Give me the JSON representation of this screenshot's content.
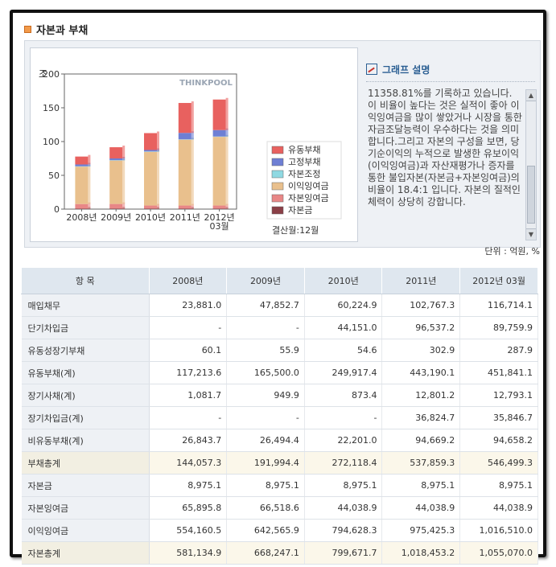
{
  "section": {
    "title": "자본과 부채"
  },
  "chart": {
    "unit_label": "조",
    "watermark": "THINKPOOL",
    "settle_label": "결산월:12월",
    "colors": {
      "유동부채": "#e8615f",
      "고정부채": "#6e7fd4",
      "자본조정": "#8fd9e2",
      "이익잉여금": "#e9c08d",
      "자본잉여금": "#e88787",
      "자본금": "#8a3f46"
    }
  },
  "chart_data": {
    "type": "bar",
    "stacked": true,
    "categories": [
      "2008년",
      "2009년",
      "2010년",
      "2011년",
      "2012년 03월"
    ],
    "ylim": [
      0,
      200
    ],
    "yticks": [
      0,
      50,
      100,
      150,
      200
    ],
    "ylabel": "조",
    "series": [
      {
        "name": "자본금",
        "values": [
          0.9,
          0.9,
          0.9,
          0.9,
          0.9
        ]
      },
      {
        "name": "자본잉여금",
        "values": [
          6.6,
          6.7,
          4.4,
          4.4,
          4.4
        ]
      },
      {
        "name": "이익잉여금",
        "values": [
          55.4,
          64.3,
          79.5,
          97.5,
          101.7
        ]
      },
      {
        "name": "자본조정",
        "values": [
          0.5,
          0.5,
          0.5,
          0.5,
          0.5
        ]
      },
      {
        "name": "고정부채",
        "values": [
          2.7,
          2.6,
          2.2,
          9.5,
          9.5
        ]
      },
      {
        "name": "유동부채",
        "values": [
          11.7,
          16.6,
          25.0,
          44.3,
          45.2
        ]
      }
    ],
    "legend_position": "right"
  },
  "description": {
    "title": "그래프 설명",
    "text": "11358.81%를 기록하고 있습니다. 이 비율이 높다는 것은 실적이 좋아 이익잉여금을 많이 쌓았거나 시장을 통한 자금조달능력이 우수하다는 것을 의미합니다.그리고 자본의 구성을 보면, 당기순이익의 누적으로 발생한 유보이익(이익잉여금)과 자산재평가나 증자를 통한 불입자본(자본금+자본잉여금)의 비율이 18.4:1 입니다. 자본의 질적인 체력이 상당히 강합니다."
  },
  "unit_note": "단위 : 억원, %",
  "table": {
    "headers": [
      "항 목",
      "2008년",
      "2009년",
      "2010년",
      "2011년",
      "2012년 03월"
    ],
    "rows": [
      {
        "label": "매입채무",
        "values": [
          "23,881.0",
          "47,852.7",
          "60,224.9",
          "102,767.3",
          "116,714.1"
        ],
        "total": false
      },
      {
        "label": "단기차입금",
        "values": [
          "-",
          "-",
          "44,151.0",
          "96,537.2",
          "89,759.9"
        ],
        "total": false
      },
      {
        "label": "유동성장기부채",
        "values": [
          "60.1",
          "55.9",
          "54.6",
          "302.9",
          "287.9"
        ],
        "total": false
      },
      {
        "label": "유동부채(계)",
        "values": [
          "117,213.6",
          "165,500.0",
          "249,917.4",
          "443,190.1",
          "451,841.1"
        ],
        "total": false
      },
      {
        "label": "장기사채(계)",
        "values": [
          "1,081.7",
          "949.9",
          "873.4",
          "12,801.2",
          "12,793.1"
        ],
        "total": false
      },
      {
        "label": "장기차입금(계)",
        "values": [
          "-",
          "-",
          "-",
          "36,824.7",
          "35,846.7"
        ],
        "total": false
      },
      {
        "label": "비유동부채(계)",
        "values": [
          "26,843.7",
          "26,494.4",
          "22,201.0",
          "94,669.2",
          "94,658.2"
        ],
        "total": false
      },
      {
        "label": "부채총계",
        "values": [
          "144,057.3",
          "191,994.4",
          "272,118.4",
          "537,859.3",
          "546,499.3"
        ],
        "total": true
      },
      {
        "label": "자본금",
        "values": [
          "8,975.1",
          "8,975.1",
          "8,975.1",
          "8,975.1",
          "8,975.1"
        ],
        "total": false
      },
      {
        "label": "자본잉여금",
        "values": [
          "65,895.8",
          "66,518.6",
          "44,038.9",
          "44,038.9",
          "44,038.9"
        ],
        "total": false
      },
      {
        "label": "이익잉여금",
        "values": [
          "554,160.5",
          "642,565.9",
          "794,628.3",
          "975,425.3",
          "1,016,510.0"
        ],
        "total": false
      },
      {
        "label": "자본총계",
        "values": [
          "581,134.9",
          "668,247.1",
          "799,671.7",
          "1,018,453.2",
          "1,055,070.0"
        ],
        "total": true
      }
    ]
  }
}
